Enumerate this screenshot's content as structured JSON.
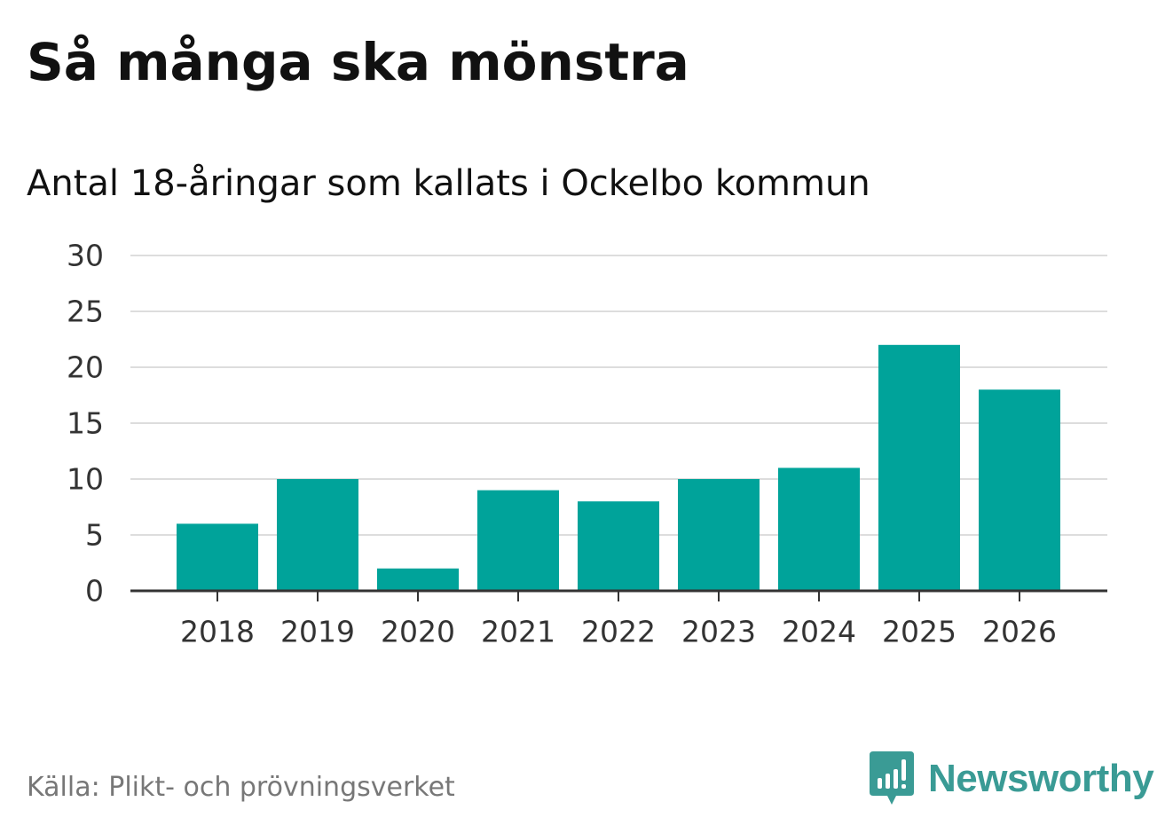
{
  "header": {
    "title": "Så många ska mönstra",
    "subtitle": "Antal 18-åringar som kallats i Ockelbo kommun"
  },
  "footer": {
    "source": "Källa: Plikt- och prövningsverket",
    "brand": "Newsworthy",
    "brand_icon": "newsworthy-logo-icon"
  },
  "colors": {
    "bar": "#00a39a",
    "grid": "#dddddd",
    "axis": "#333333",
    "brand": "#3a9b95"
  },
  "chart_data": {
    "type": "bar",
    "title": "Så många ska mönstra",
    "subtitle": "Antal 18-åringar som kallats i Ockelbo kommun",
    "categories": [
      "2018",
      "2019",
      "2020",
      "2021",
      "2022",
      "2023",
      "2024",
      "2025",
      "2026"
    ],
    "values": [
      6,
      10,
      2,
      9,
      8,
      10,
      11,
      22,
      18
    ],
    "ylim": [
      0,
      30
    ],
    "yticks": [
      0,
      5,
      10,
      15,
      20,
      25,
      30
    ],
    "grid": true,
    "legend": "none"
  }
}
